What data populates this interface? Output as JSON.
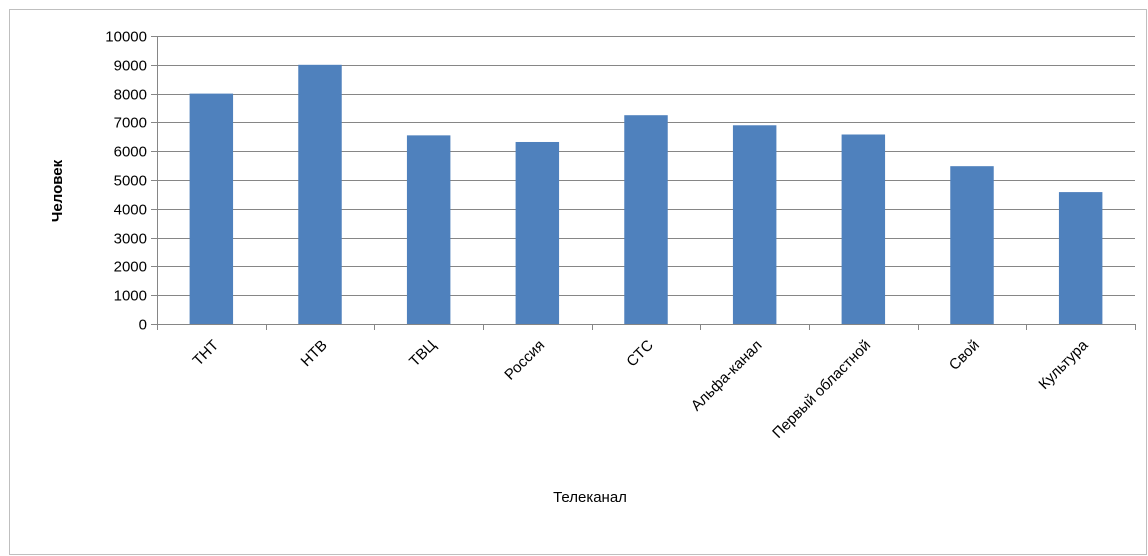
{
  "chart_data": {
    "type": "bar",
    "categories": [
      "ТНТ",
      "НТВ",
      "ТВЦ",
      "Россия",
      "СТС",
      "Альфа-канал",
      "Первый областной",
      "Свой",
      "Культура"
    ],
    "values": [
      8000,
      9000,
      6550,
      6320,
      7250,
      6900,
      6580,
      5480,
      4580
    ],
    "title": "",
    "xlabel": "Телеканал",
    "ylabel": "Человек",
    "ylim": [
      0,
      10000
    ],
    "yticks": [
      "0",
      "1000",
      "2000",
      "3000",
      "4000",
      "5000",
      "6000",
      "7000",
      "8000",
      "9000",
      "10000"
    ],
    "grid": true,
    "legend": "none",
    "bar_color": "#4f81bd",
    "grid_color": "#868686"
  }
}
